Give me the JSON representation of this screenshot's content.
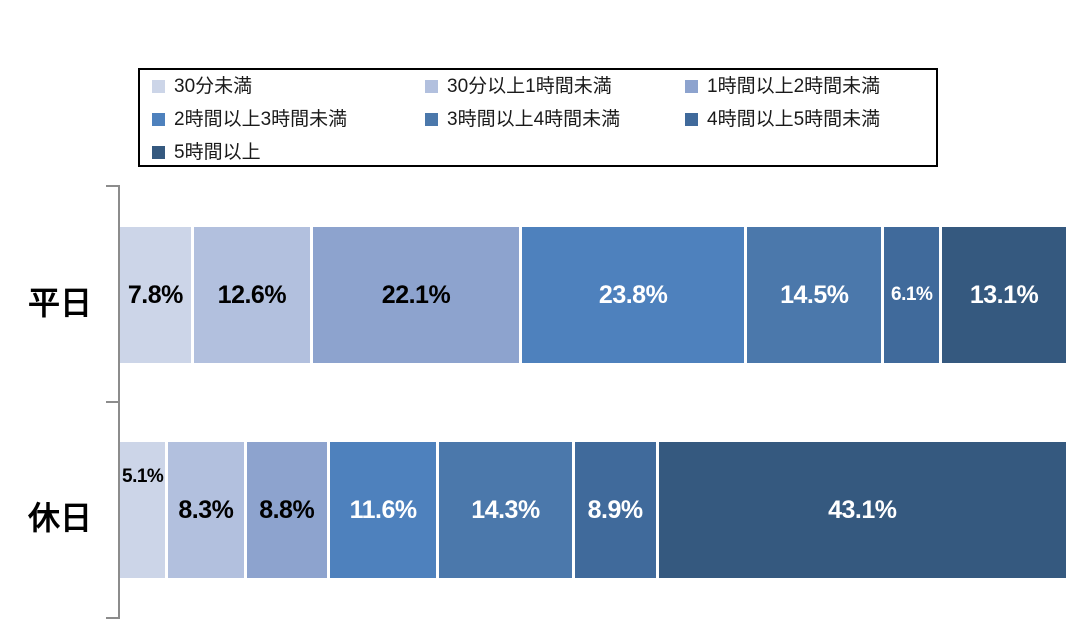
{
  "chart_data": {
    "type": "bar",
    "variant": "horizontal-stacked-100",
    "title": "",
    "categories": [
      "平日",
      "休日"
    ],
    "series": [
      {
        "name": "30分未満",
        "color": "#ccd5e8",
        "values": [
          7.8,
          5.1
        ],
        "labels": [
          "7.8%",
          "5.1%"
        ]
      },
      {
        "name": "30分以上1時間未満",
        "color": "#b2c0de",
        "values": [
          12.6,
          8.3
        ],
        "labels": [
          "12.6%",
          "8.3%"
        ]
      },
      {
        "name": "1時間以上2時間未満",
        "color": "#8da3ce",
        "values": [
          22.1,
          8.8
        ],
        "labels": [
          "22.1%",
          "8.8%"
        ]
      },
      {
        "name": "2時間以上3時間未満",
        "color": "#4e81bd",
        "values": [
          23.8,
          11.6
        ],
        "labels": [
          "23.8%",
          "11.6%"
        ]
      },
      {
        "name": "3時間以上4時間未満",
        "color": "#4b78ab",
        "values": [
          14.5,
          14.3
        ],
        "labels": [
          "14.5%",
          "14.3%"
        ]
      },
      {
        "name": "4時間以上5時間未満",
        "color": "#406a9b",
        "values": [
          6.1,
          8.9
        ],
        "labels": [
          "6.1%",
          "8.9%"
        ]
      },
      {
        "name": "5時間以上",
        "color": "#35597f",
        "values": [
          13.1,
          43.1
        ],
        "labels": [
          "13.1%",
          "43.1%"
        ]
      }
    ],
    "xlim": [
      0,
      100
    ],
    "grid": false,
    "legend_position": "top",
    "legend_rows": [
      [
        0,
        1,
        2
      ],
      [
        3,
        4,
        5
      ],
      [
        6
      ]
    ],
    "label_text_color_dark_segments": "#ffffff",
    "label_text_color_light_segments": "#000000",
    "light_text_series_count": 3,
    "label_hints": [
      {
        "category": 0,
        "series": 5,
        "size": 19
      },
      {
        "category": 1,
        "series": 0,
        "size": 19,
        "dy": -33,
        "align": "left"
      }
    ],
    "axis_color": "#8c8c8c"
  }
}
